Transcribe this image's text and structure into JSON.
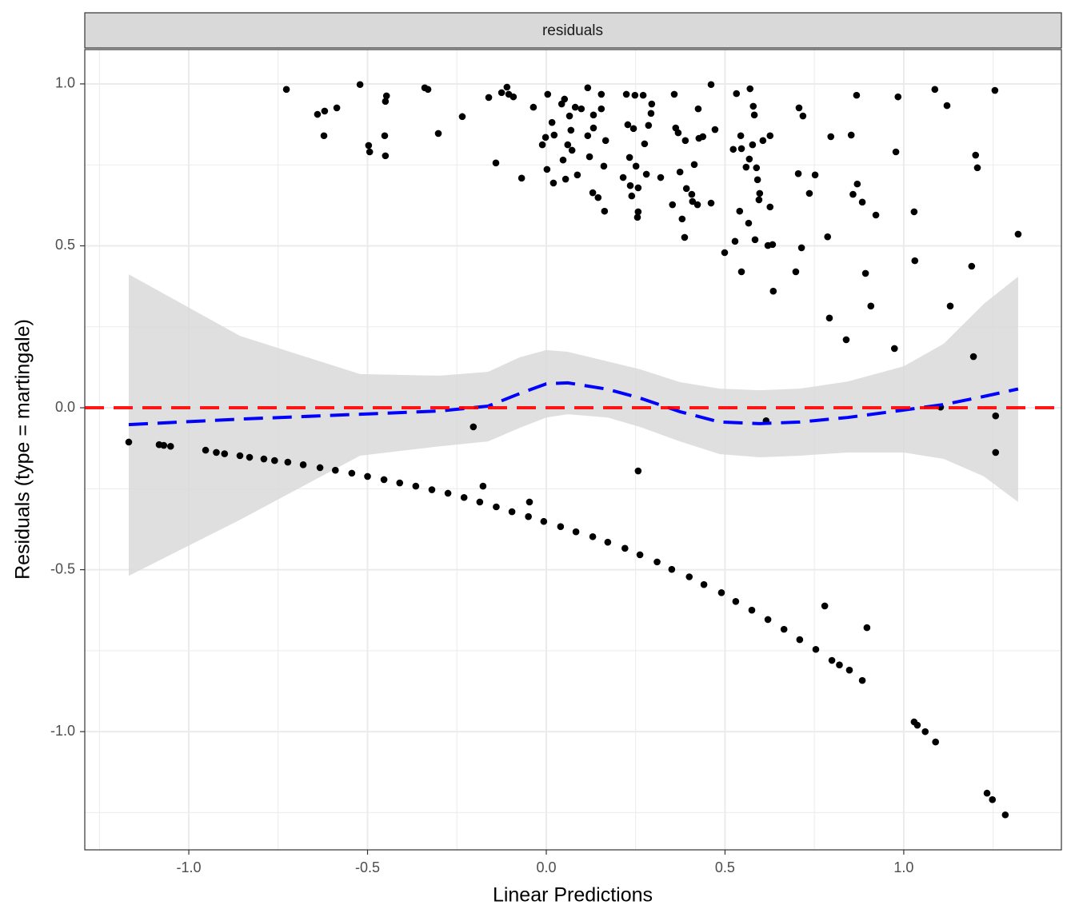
{
  "chart_data": {
    "type": "scatter",
    "strip_label": "residuals",
    "x_label": "Linear Predictions",
    "y_label": "Residuals (type = martingale)",
    "xlim": [
      -1.291,
      1.441
    ],
    "ylim": [
      -1.365,
      1.106
    ],
    "xticks": [
      {
        "value": -1,
        "label": "-1.0"
      },
      {
        "value": -0.5,
        "label": "-0.5"
      },
      {
        "value": 0,
        "label": "0.0"
      },
      {
        "value": 0.5,
        "label": "0.5"
      },
      {
        "value": 1,
        "label": "1.0"
      }
    ],
    "yticks": [
      {
        "value": -1,
        "label": "-1.0"
      },
      {
        "value": -0.5,
        "label": "-0.5"
      },
      {
        "value": 0,
        "label": "0.0"
      },
      {
        "value": 0.5,
        "label": "0.5"
      },
      {
        "value": 1,
        "label": "1.0"
      }
    ],
    "x_minor_ticks": [
      -1.25,
      -0.75,
      -0.25,
      0.25,
      0.75,
      1.25
    ],
    "y_minor_ticks": [
      -1.25,
      -0.75,
      -0.25,
      0.25,
      0.75
    ],
    "grid": true,
    "points": {
      "color": "#000000",
      "x": [
        -0.727,
        -0.64,
        -0.62,
        -0.586,
        -0.622,
        -0.521,
        -0.497,
        -0.494,
        -0.447,
        -0.45,
        -0.452,
        -0.45,
        -0.34,
        -0.331,
        -0.302,
        -0.235,
        -0.161,
        -0.141,
        -0.125,
        -0.11,
        -0.105,
        -0.092,
        -0.036,
        -0.069,
        0.004,
        -0.011,
        -0.002,
        0.002,
        0.02,
        0.016,
        0.022,
        0.043,
        0.051,
        0.047,
        0.054,
        0.065,
        0.06,
        0.069,
        0.072,
        0.081,
        0.087,
        0.098,
        0.116,
        0.116,
        0.121,
        0.132,
        0.132,
        0.13,
        0.145,
        0.154,
        0.154,
        0.161,
        0.163,
        0.166,
        0.215,
        0.224,
        0.228,
        0.233,
        0.235,
        0.239,
        0.244,
        0.248,
        0.251,
        0.257,
        0.255,
        0.257,
        0.271,
        0.275,
        0.28,
        0.286,
        0.293,
        0.295,
        0.32,
        0.358,
        0.353,
        0.362,
        0.369,
        0.374,
        0.38,
        0.387,
        0.389,
        0.392,
        0.407,
        0.409,
        0.414,
        0.423,
        0.425,
        0.427,
        0.438,
        0.461,
        0.461,
        0.472,
        0.499,
        0.523,
        0.528,
        0.532,
        0.541,
        0.546,
        0.544,
        0.546,
        0.559,
        0.566,
        0.568,
        0.57,
        0.577,
        0.579,
        0.582,
        0.584,
        0.591,
        0.588,
        0.595,
        0.597,
        0.606,
        0.626,
        0.62,
        0.626,
        0.633,
        0.635,
        0.698,
        0.705,
        0.707,
        0.714,
        0.718,
        0.736,
        0.752,
        0.787,
        0.796,
        0.792,
        0.839,
        0.853,
        0.858,
        0.868,
        0.87,
        0.884,
        0.893,
        0.908,
        0.922,
        0.974,
        0.978,
        0.984,
        1.029,
        1.031,
        1.087,
        1.121,
        1.13,
        1.19,
        1.195,
        1.201,
        1.206,
        1.255,
        1.32,
        -0.204,
        -0.177,
        -0.047,
        0.257,
        0.615,
        1.103,
        1.257,
        1.257,
        0.779,
        0.897,
        1.029,
        1.038,
        1.06,
        1.089,
        1.233,
        1.248,
        1.284,
        -1.168,
        -1.083,
        -1.07,
        -1.051,
        -0.953,
        -0.923,
        -0.9,
        -0.857,
        -0.83,
        -0.79,
        -0.76,
        -0.723,
        -0.68,
        -0.633,
        -0.59,
        -0.544,
        -0.5,
        -0.454,
        -0.41,
        -0.365,
        -0.32,
        -0.275,
        -0.23,
        -0.186,
        -0.14,
        -0.096,
        -0.05,
        -0.007,
        0.04,
        0.083,
        0.13,
        0.172,
        0.22,
        0.262,
        0.31,
        0.351,
        0.4,
        0.441,
        0.49,
        0.53,
        0.575,
        0.62,
        0.665,
        0.709,
        0.754,
        0.799,
        0.82,
        0.848,
        0.884
      ],
      "y": [
        0.983,
        0.906,
        0.916,
        0.926,
        0.84,
        0.998,
        0.81,
        0.79,
        0.963,
        0.946,
        0.84,
        0.778,
        0.988,
        0.983,
        0.847,
        0.899,
        0.958,
        0.756,
        0.973,
        0.99,
        0.968,
        0.96,
        0.928,
        0.709,
        0.968,
        0.812,
        0.835,
        0.736,
        0.694,
        0.881,
        0.842,
        0.938,
        0.953,
        0.765,
        0.706,
        0.901,
        0.812,
        0.857,
        0.795,
        0.928,
        0.719,
        0.923,
        0.988,
        0.84,
        0.775,
        0.904,
        0.864,
        0.664,
        0.649,
        0.968,
        0.923,
        0.746,
        0.607,
        0.825,
        0.711,
        0.968,
        0.874,
        0.773,
        0.686,
        0.654,
        0.862,
        0.965,
        0.746,
        0.679,
        0.588,
        0.605,
        0.965,
        0.815,
        0.721,
        0.872,
        0.909,
        0.938,
        0.711,
        0.968,
        0.627,
        0.864,
        0.849,
        0.728,
        0.583,
        0.526,
        0.825,
        0.677,
        0.659,
        0.637,
        0.751,
        0.627,
        0.923,
        0.832,
        0.837,
        0.632,
        0.998,
        0.859,
        0.479,
        0.798,
        0.514,
        0.97,
        0.607,
        0.8,
        0.84,
        0.42,
        0.743,
        0.57,
        0.768,
        0.985,
        0.812,
        0.931,
        0.904,
        0.519,
        0.704,
        0.741,
        0.642,
        0.662,
        0.825,
        0.84,
        0.501,
        0.62,
        0.504,
        0.36,
        0.42,
        0.723,
        0.926,
        0.494,
        0.901,
        0.662,
        0.719,
        0.528,
        0.837,
        0.277,
        0.21,
        0.842,
        0.659,
        0.965,
        0.691,
        0.635,
        0.415,
        0.314,
        0.595,
        0.183,
        0.79,
        0.96,
        0.605,
        0.454,
        0.983,
        0.933,
        0.314,
        0.437,
        0.158,
        0.78,
        0.741,
        0.98,
        0.536,
        -0.059,
        -0.242,
        -0.291,
        -0.195,
        -0.04,
        0.002,
        -0.025,
        -0.138,
        -0.612,
        -0.679,
        -0.97,
        -0.98,
        -1.0,
        -1.032,
        -1.19,
        -1.21,
        -1.257,
        -0.106,
        -0.114,
        -0.116,
        -0.119,
        -0.131,
        -0.138,
        -0.142,
        -0.148,
        -0.153,
        -0.158,
        -0.163,
        -0.168,
        -0.176,
        -0.185,
        -0.193,
        -0.202,
        -0.212,
        -0.222,
        -0.232,
        -0.242,
        -0.253,
        -0.264,
        -0.277,
        -0.291,
        -0.306,
        -0.321,
        -0.336,
        -0.351,
        -0.367,
        -0.383,
        -0.398,
        -0.415,
        -0.434,
        -0.454,
        -0.476,
        -0.499,
        -0.522,
        -0.546,
        -0.571,
        -0.598,
        -0.625,
        -0.654,
        -0.684,
        -0.716,
        -0.746,
        -0.78,
        -0.794,
        -0.81,
        -0.842
      ]
    },
    "smooth": {
      "color": "#0000ff",
      "fill": "#d9d9d9",
      "x": [
        -1.168,
        -0.857,
        -0.521,
        -0.298,
        -0.163,
        -0.074,
        0.0,
        0.06,
        0.172,
        0.262,
        0.374,
        0.485,
        0.597,
        0.709,
        0.843,
        1.0,
        1.112,
        1.224,
        1.32
      ],
      "y": [
        -0.052,
        -0.035,
        -0.02,
        -0.01,
        0.005,
        0.044,
        0.074,
        0.077,
        0.057,
        0.03,
        -0.012,
        -0.044,
        -0.049,
        -0.044,
        -0.03,
        -0.007,
        0.01,
        0.035,
        0.058
      ],
      "upper": [
        0.412,
        0.222,
        0.104,
        0.099,
        0.111,
        0.156,
        0.178,
        0.173,
        0.143,
        0.119,
        0.079,
        0.059,
        0.054,
        0.059,
        0.081,
        0.128,
        0.198,
        0.321,
        0.405
      ],
      "lower": [
        -0.519,
        -0.346,
        -0.148,
        -0.119,
        -0.104,
        -0.062,
        -0.03,
        -0.02,
        -0.03,
        -0.059,
        -0.104,
        -0.143,
        -0.153,
        -0.148,
        -0.138,
        -0.138,
        -0.158,
        -0.212,
        -0.291
      ]
    },
    "hline": {
      "value": 0,
      "color": "#ff0000"
    }
  }
}
